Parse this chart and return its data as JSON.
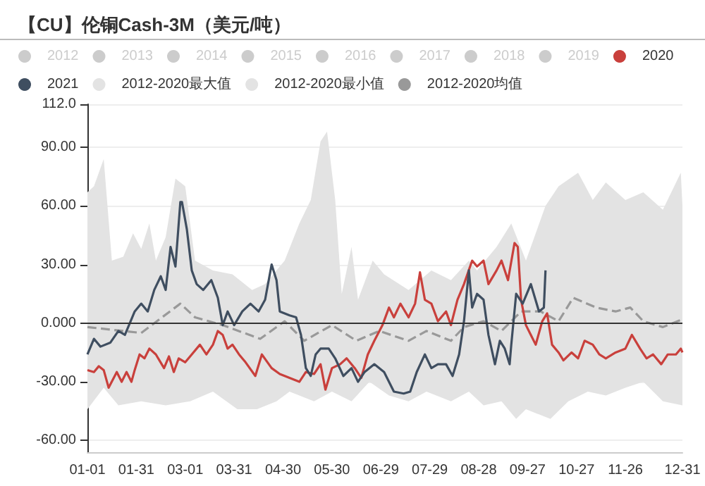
{
  "chart_data": {
    "type": "line",
    "title": "【CU】伦铜Cash-3M（美元/吨）",
    "xlim": [
      "--01-01",
      "--12-31"
    ],
    "xticks": [
      {
        "value": "--01-01",
        "label": "01-01"
      },
      {
        "value": "--01-31",
        "label": "01-31"
      },
      {
        "value": "--03-01",
        "label": "03-01"
      },
      {
        "value": "--03-31",
        "label": "03-31"
      },
      {
        "value": "--04-30",
        "label": "04-30"
      },
      {
        "value": "--05-30",
        "label": "05-30"
      },
      {
        "value": "--06-29",
        "label": "06-29"
      },
      {
        "value": "--07-29",
        "label": "07-29"
      },
      {
        "value": "--08-28",
        "label": "08-28"
      },
      {
        "value": "--09-27",
        "label": "09-27"
      },
      {
        "value": "--10-27",
        "label": "10-27"
      },
      {
        "value": "--11-26",
        "label": "11-26"
      },
      {
        "value": "--12-31",
        "label": "12-31"
      }
    ],
    "ylim": [
      -66,
      112
    ],
    "yticks": [
      {
        "value": -60,
        "label": "-60.00"
      },
      {
        "value": -30,
        "label": "-30.00"
      },
      {
        "value": 0,
        "label": "0.000"
      },
      {
        "value": 30,
        "label": "30.00"
      },
      {
        "value": 60,
        "label": "60.00"
      },
      {
        "value": 90,
        "label": "90.00"
      },
      {
        "value": 112,
        "label": "112.0"
      }
    ],
    "grid": "y",
    "legend": "top",
    "marker": "none",
    "ref_lines": [
      {
        "axis": "y",
        "value": 0,
        "color": "#333333"
      }
    ],
    "series": [
      {
        "name": "2012",
        "color": "#cccccc"
      },
      {
        "name": "2013",
        "color": "#cccccc"
      },
      {
        "name": "2014",
        "color": "#cccccc"
      },
      {
        "name": "2015",
        "color": "#cccccc"
      },
      {
        "name": "2016",
        "color": "#cccccc"
      },
      {
        "name": "2017",
        "color": "#cccccc"
      },
      {
        "name": "2018",
        "color": "#cccccc"
      },
      {
        "name": "2019",
        "color": "#cccccc"
      },
      {
        "name": "2012-2020最大值",
        "type": "area",
        "color": "#e3e3e3",
        "x": [
          "--01-01",
          "--01-05",
          "--01-11",
          "--01-16",
          "--01-23",
          "--01-29",
          "--02-03",
          "--02-08",
          "--02-12",
          "--02-18",
          "--02-24",
          "--03-01",
          "--03-07",
          "--03-18",
          "--03-30",
          "--04-11",
          "--04-19",
          "--05-01",
          "--05-10",
          "--05-17",
          "--05-23",
          "--05-27",
          "--06-01",
          "--06-05",
          "--06-11",
          "--06-15",
          "--06-24",
          "--07-01",
          "--07-16",
          "--07-30",
          "--08-11",
          "--08-22",
          "--08-27",
          "--09-08",
          "--09-17",
          "--09-26",
          "--10-08",
          "--10-16",
          "--10-28",
          "--11-06",
          "--11-14",
          "--11-26",
          "--12-07",
          "--12-19",
          "--12-30",
          "--12-31"
        ],
        "values": [
          67,
          70,
          84,
          32,
          34,
          46,
          38,
          51,
          32,
          44,
          74,
          70,
          32,
          27,
          25,
          17,
          20,
          32,
          51,
          63,
          93,
          98,
          63,
          15,
          39,
          12,
          32,
          25,
          17,
          27,
          22,
          32,
          27,
          39,
          51,
          32,
          60,
          70,
          77,
          63,
          72,
          63,
          67,
          58,
          77,
          60
        ]
      },
      {
        "name": "2012-2020最小值",
        "type": "area",
        "color": "#e3e3e3",
        "x": [
          "--01-01",
          "--01-11",
          "--01-20",
          "--02-03",
          "--02-18",
          "--03-04",
          "--03-18",
          "--04-02",
          "--04-14",
          "--04-26",
          "--05-04",
          "--05-19",
          "--05-30",
          "--06-11",
          "--06-22",
          "--07-04",
          "--07-16",
          "--07-27",
          "--08-11",
          "--08-22",
          "--08-31",
          "--09-11",
          "--09-20",
          "--09-26",
          "--10-11",
          "--10-22",
          "--11-03",
          "--11-14",
          "--11-26",
          "--12-07",
          "--12-19",
          "--12-31"
        ],
        "values": [
          -44,
          -33,
          -42,
          -40,
          -42,
          -40,
          -35,
          -44,
          -44,
          -40,
          -35,
          -40,
          -35,
          -40,
          -30,
          -37,
          -40,
          -35,
          -40,
          -35,
          -42,
          -40,
          -49,
          -44,
          -49,
          -40,
          -35,
          -37,
          -33,
          -30,
          -40,
          -42
        ]
      },
      {
        "name": "2012-2020均值",
        "color": "#999999",
        "line_style": "dashed",
        "x": [
          "--01-01",
          "--02-03",
          "--02-27",
          "--03-07",
          "--03-24",
          "--04-16",
          "--05-01",
          "--05-13",
          "--05-30",
          "--06-14",
          "--06-28",
          "--07-16",
          "--07-27",
          "--08-11",
          "--08-19",
          "--08-31",
          "--09-11",
          "--09-23",
          "--10-05",
          "--10-16",
          "--10-25",
          "--11-08",
          "--11-20",
          "--11-29",
          "--12-07",
          "--12-19",
          "--12-31"
        ],
        "values": [
          -2,
          -5,
          10,
          3,
          -1,
          -8,
          1,
          -9,
          -1,
          -9,
          -4,
          -9,
          -4,
          -9,
          -2,
          1,
          -4,
          6,
          6,
          1,
          13,
          8,
          6,
          8,
          1,
          -2,
          2
        ]
      },
      {
        "name": "2020",
        "color": "#c9403c",
        "x": [
          "--01-01",
          "--01-05",
          "--01-08",
          "--01-11",
          "--01-14",
          "--01-19",
          "--01-22",
          "--01-25",
          "--01-28",
          "--01-30",
          "--02-02",
          "--02-05",
          "--02-08",
          "--02-12",
          "--02-17",
          "--02-20",
          "--02-23",
          "--02-26",
          "--03-01",
          "--03-05",
          "--03-10",
          "--03-14",
          "--03-18",
          "--03-21",
          "--03-24",
          "--03-27",
          "--03-30",
          "--04-03",
          "--04-07",
          "--04-13",
          "--04-17",
          "--04-23",
          "--04-28",
          "--05-04",
          "--05-10",
          "--05-14",
          "--05-19",
          "--05-23",
          "--05-26",
          "--05-30",
          "--06-04",
          "--06-08",
          "--06-13",
          "--06-17",
          "--06-21",
          "--06-25",
          "--06-30",
          "--07-04",
          "--07-07",
          "--07-11",
          "--07-16",
          "--07-20",
          "--07-23",
          "--07-26",
          "--07-30",
          "--08-03",
          "--08-08",
          "--08-11",
          "--08-15",
          "--08-19",
          "--08-24",
          "--08-27",
          "--08-31",
          "--09-03",
          "--09-08",
          "--09-11",
          "--09-15",
          "--09-19",
          "--09-21",
          "--09-23",
          "--09-26",
          "--09-29",
          "--10-02",
          "--10-06",
          "--10-09",
          "--10-12",
          "--10-16",
          "--10-19",
          "--10-24",
          "--10-28",
          "--11-01",
          "--11-06",
          "--11-10",
          "--11-14",
          "--11-20",
          "--11-26",
          "--11-30",
          "--12-05",
          "--12-09",
          "--12-13",
          "--12-18",
          "--12-22",
          "--12-27",
          "--12-30",
          "--12-31"
        ],
        "values": [
          -24,
          -25,
          -22,
          -24,
          -33,
          -25,
          -30,
          -25,
          -30,
          -24,
          -16,
          -18,
          -13,
          -16,
          -23,
          -17,
          -25,
          -18,
          -20,
          -16,
          -11,
          -16,
          -11,
          -4,
          -6,
          -13,
          -11,
          -16,
          -20,
          -27,
          -16,
          -23,
          -26,
          -28,
          -30,
          -25,
          -26,
          -21,
          -34,
          -23,
          -21,
          -18,
          -23,
          -28,
          -16,
          -9,
          -1,
          8,
          3,
          10,
          3,
          10,
          26,
          12,
          10,
          1,
          6,
          -1,
          12,
          20,
          32,
          29,
          32,
          20,
          27,
          32,
          22,
          41,
          39,
          12,
          -1,
          -6,
          -11,
          1,
          5,
          -11,
          -15,
          -19,
          -15,
          -18,
          -9,
          -11,
          -16,
          -18,
          -15,
          -13,
          -6,
          -13,
          -18,
          -16,
          -21,
          -16,
          -16,
          -13,
          -15
        ]
      },
      {
        "name": "2021",
        "color": "#3f4e60",
        "x": [
          "--01-01",
          "--01-05",
          "--01-09",
          "--01-15",
          "--01-20",
          "--01-24",
          "--01-27",
          "--01-30",
          "--02-03",
          "--02-07",
          "--02-11",
          "--02-15",
          "--02-18",
          "--02-21",
          "--02-24",
          "--02-27",
          "--02-28",
          "--03-02",
          "--03-05",
          "--03-08",
          "--03-12",
          "--03-17",
          "--03-21",
          "--03-24",
          "--03-27",
          "--03-31",
          "--04-05",
          "--04-10",
          "--04-15",
          "--04-19",
          "--04-23",
          "--04-26",
          "--04-28",
          "--05-04",
          "--05-08",
          "--05-11",
          "--05-14",
          "--05-17",
          "--05-20",
          "--05-23",
          "--05-28",
          "--06-01",
          "--06-06",
          "--06-11",
          "--06-15",
          "--06-19",
          "--06-25",
          "--07-01",
          "--07-07",
          "--07-13",
          "--07-17",
          "--07-21",
          "--07-26",
          "--07-30",
          "--08-03",
          "--08-08",
          "--08-12",
          "--08-16",
          "--08-19",
          "--08-22",
          "--08-24",
          "--08-27",
          "--08-31",
          "--09-03",
          "--09-07",
          "--09-10",
          "--09-13",
          "--09-16",
          "--09-17",
          "--09-20",
          "--09-24",
          "--09-29",
          "--10-04",
          "--10-07",
          "--10-08"
        ],
        "values": [
          -16,
          -8,
          -12,
          -10,
          -4,
          -6,
          0,
          6,
          10,
          6,
          17,
          24,
          17,
          39,
          29,
          62,
          62,
          48,
          27,
          20,
          17,
          22,
          13,
          -1,
          6,
          -1,
          6,
          10,
          6,
          12,
          30,
          22,
          6,
          4,
          3,
          -6,
          -23,
          -27,
          -16,
          -13,
          -13,
          -18,
          -27,
          -23,
          -30,
          -25,
          -21,
          -25,
          -35,
          -36,
          -35,
          -25,
          -16,
          -23,
          -21,
          -21,
          -27,
          -16,
          1,
          27,
          8,
          15,
          12,
          -6,
          -21,
          -9,
          -13,
          -21,
          -11,
          15,
          10,
          20,
          6,
          8,
          27
        ]
      }
    ]
  }
}
